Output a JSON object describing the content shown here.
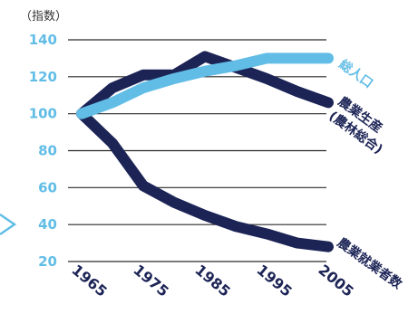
{
  "unit_label": "（指数）",
  "colors": {
    "navy": "#1c2456",
    "light_blue": "#62bde6",
    "grid": "#2a2a2a",
    "arrow": "#62bde6"
  },
  "labels": {
    "population": "総人口",
    "production_line1": "農業生産",
    "production_line2": "(農林総合)",
    "workers": "農業就業者数"
  },
  "chart_data": {
    "type": "line",
    "x": [
      1965,
      1970,
      1975,
      1980,
      1985,
      1990,
      1995,
      2000,
      2005
    ],
    "x_tick_labels": [
      "1965",
      "1975",
      "1985",
      "1995",
      "2005"
    ],
    "y_tick_labels": [
      "20",
      "40",
      "60",
      "80",
      "100",
      "120",
      "140"
    ],
    "ylim": [
      20,
      140
    ],
    "grid": true,
    "series": [
      {
        "name": "総人口",
        "color": "light_blue",
        "values": [
          100,
          106,
          114,
          119,
          123,
          126,
          130,
          130,
          130
        ]
      },
      {
        "name": "農業生産(農林総合)",
        "color": "navy",
        "values": [
          100,
          114,
          121,
          121,
          131,
          125,
          119,
          112,
          106
        ]
      },
      {
        "name": "農業就業者数",
        "color": "navy",
        "values": [
          100,
          84,
          61,
          52,
          45,
          39,
          35,
          30,
          28
        ]
      }
    ]
  }
}
